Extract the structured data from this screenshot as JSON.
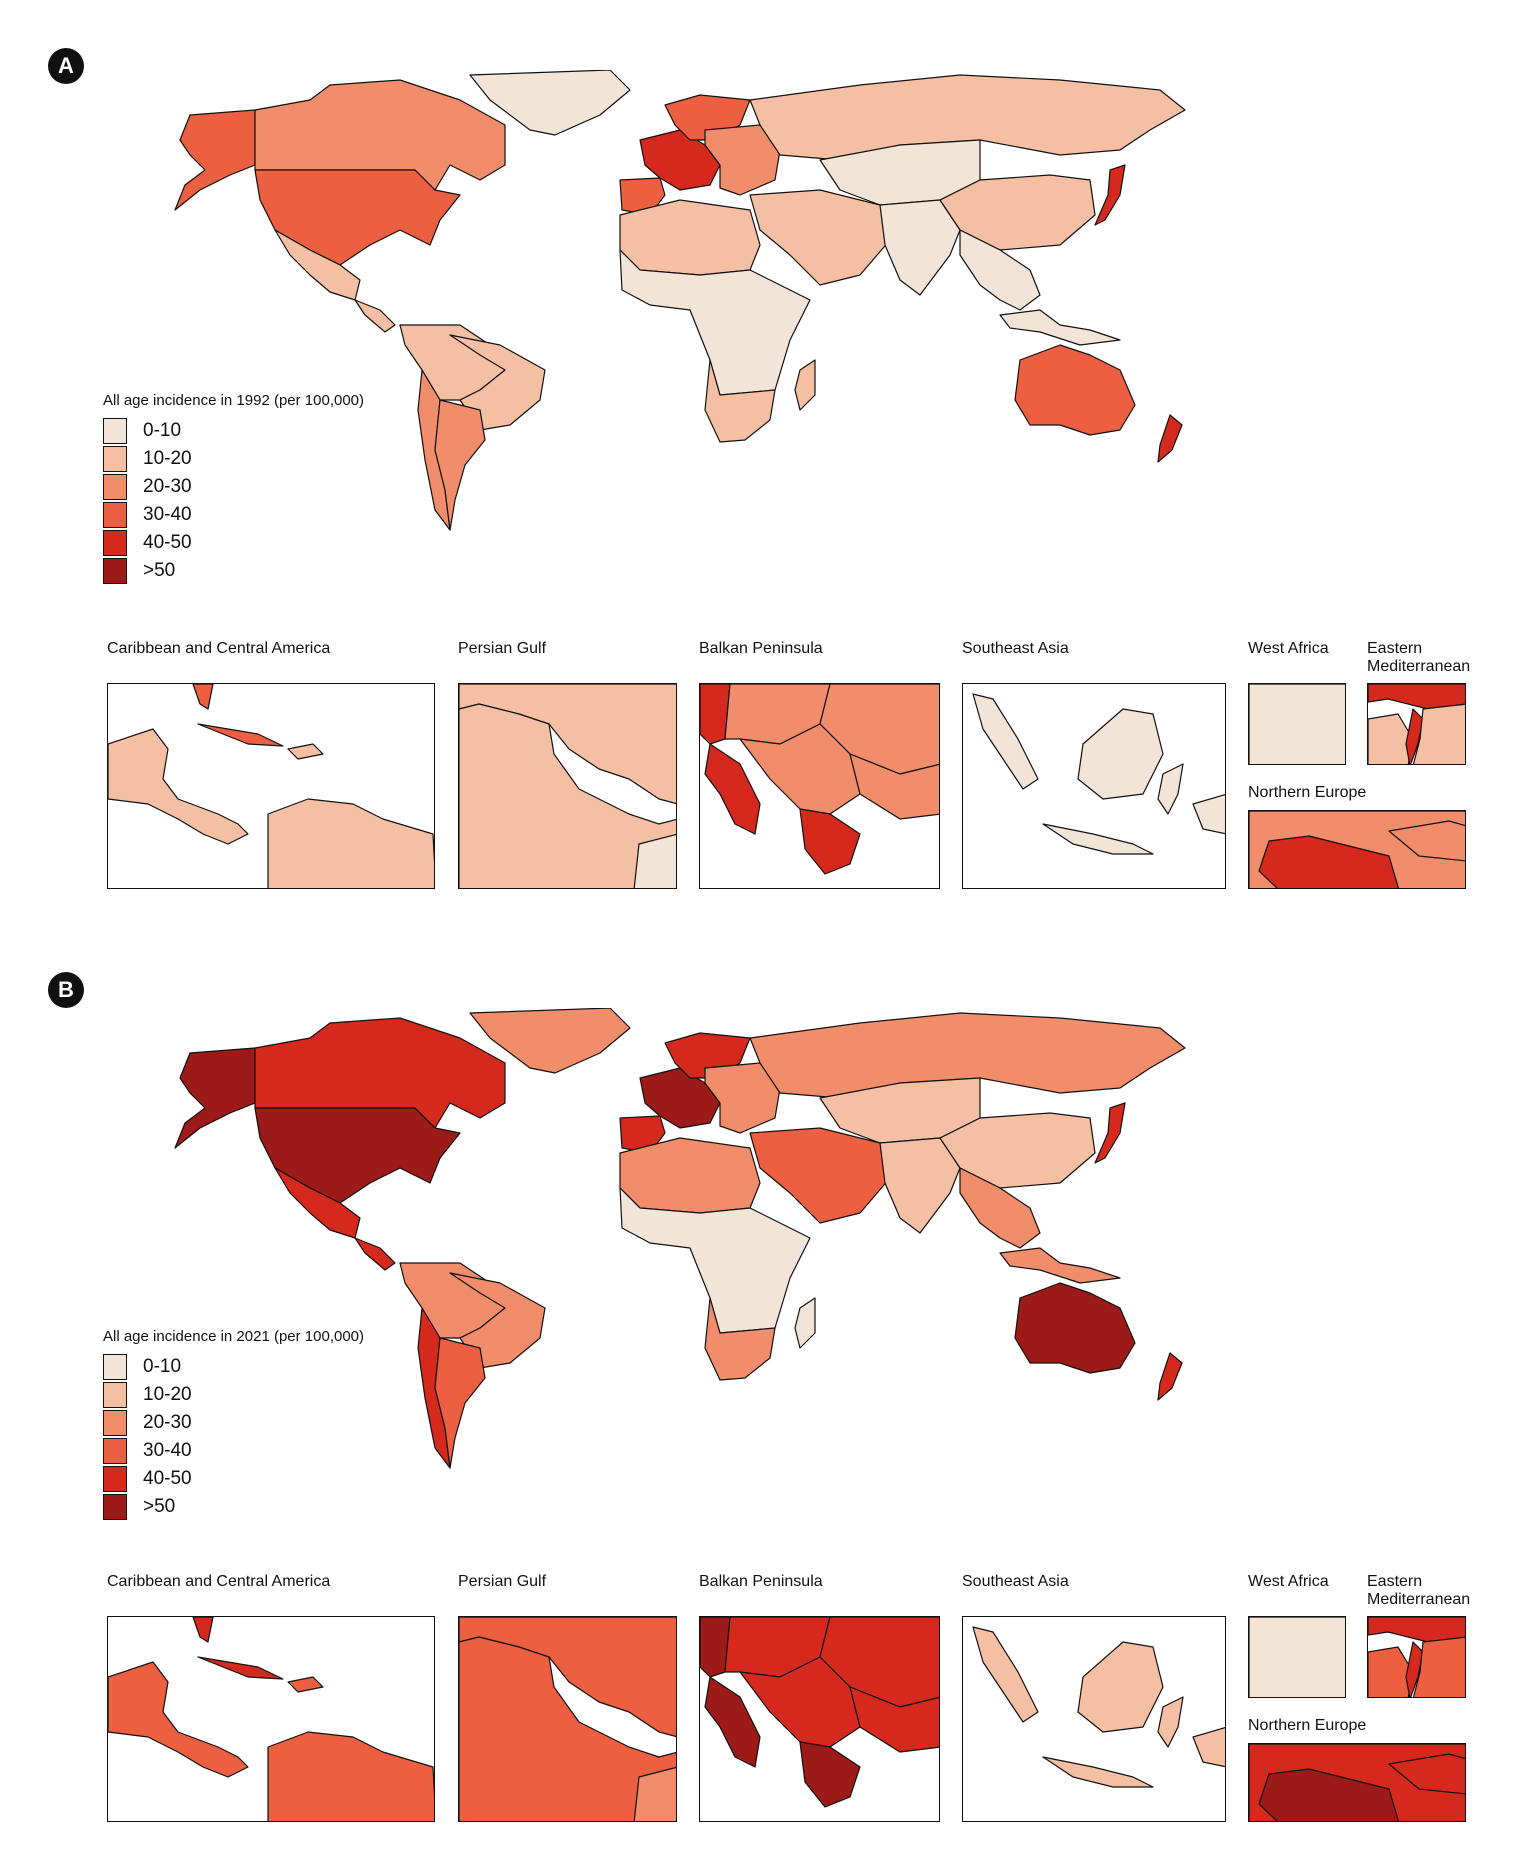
{
  "colors": {
    "bin_0_10": "#f3e4d8",
    "bin_10_20": "#f4bfa3",
    "bin_20_30": "#f28d6b",
    "bin_30_40": "#ec5f40",
    "bin_40_50": "#d5291e",
    "bin_gt_50": "#9c1a17"
  },
  "panels": [
    {
      "letter": "A",
      "legend_title": "All age incidence in 1992 (per 100,000)",
      "legend": [
        {
          "label": "0-10",
          "color": "#f3e4d8"
        },
        {
          "label": "10-20",
          "color": "#f4bfa3"
        },
        {
          "label": "20-30",
          "color": "#f28d6b"
        },
        {
          "label": "30-40",
          "color": "#ec5f40"
        },
        {
          "label": "40-50",
          "color": "#d5291e"
        },
        {
          "label": ">50",
          "color": "#9c1a17"
        }
      ],
      "regions": {
        "greenland": "#f3e4d8",
        "canada": "#f28d6b",
        "alaska": "#ec5f40",
        "usa": "#ec5f40",
        "mexico": "#f4bfa3",
        "central_america": "#f4bfa3",
        "south_america": "#f4bfa3",
        "brazil": "#f4bfa3",
        "argentina": "#f28d6b",
        "chile": "#f28d6b",
        "western_europe": "#d5291e",
        "iberia": "#ec5f40",
        "scandinavia": "#ec5f40",
        "eastern_europe": "#f28d6b",
        "russia": "#f4bfa3",
        "central_asia": "#f3e4d8",
        "middle_east": "#f4bfa3",
        "north_africa": "#f4bfa3",
        "sub_saharan": "#f3e4d8",
        "south_africa": "#f4bfa3",
        "india": "#f3e4d8",
        "china": "#f4bfa3",
        "japan": "#d5291e",
        "southeast_asia": "#f3e4d8",
        "australia": "#ec5f40",
        "new_zealand": "#d5291e",
        "madagascar": "#f4bfa3"
      },
      "insets": [
        {
          "title": "Caribbean and Central America",
          "land": "#f4bfa3",
          "accent": "#ec5f40"
        },
        {
          "title": "Persian Gulf",
          "land": "#f4bfa3",
          "accent": "#f3e4d8"
        },
        {
          "title": "Balkan Peninsula",
          "land": "#f28d6b",
          "accent": "#d5291e"
        },
        {
          "title": "Southeast Asia",
          "land": "#f3e4d8",
          "accent": "#f3e4d8"
        },
        {
          "title": "West Africa",
          "land": "#f3e4d8",
          "accent": "#f3e4d8"
        },
        {
          "title": "Eastern Mediterranean",
          "land": "#f4bfa3",
          "accent": "#d5291e"
        },
        {
          "title": "Northern Europe",
          "land": "#f28d6b",
          "accent": "#d5291e"
        }
      ]
    },
    {
      "letter": "B",
      "legend_title": "All age incidence in 2021 (per 100,000)",
      "legend": [
        {
          "label": "0-10",
          "color": "#f3e4d8"
        },
        {
          "label": "10-20",
          "color": "#f4bfa3"
        },
        {
          "label": "20-30",
          "color": "#f28d6b"
        },
        {
          "label": "30-40",
          "color": "#ec5f40"
        },
        {
          "label": "40-50",
          "color": "#d5291e"
        },
        {
          "label": ">50",
          "color": "#9c1a17"
        }
      ],
      "regions": {
        "greenland": "#f28d6b",
        "canada": "#d5291e",
        "alaska": "#9c1a17",
        "usa": "#9c1a17",
        "mexico": "#d5291e",
        "central_america": "#d5291e",
        "south_america": "#f28d6b",
        "brazil": "#f28d6b",
        "argentina": "#ec5f40",
        "chile": "#d5291e",
        "western_europe": "#9c1a17",
        "iberia": "#d5291e",
        "scandinavia": "#d5291e",
        "eastern_europe": "#f28d6b",
        "russia": "#f28d6b",
        "central_asia": "#f4bfa3",
        "middle_east": "#ec5f40",
        "north_africa": "#f28d6b",
        "sub_saharan": "#f3e4d8",
        "south_africa": "#f28d6b",
        "india": "#f4bfa3",
        "china": "#f4bfa3",
        "japan": "#d5291e",
        "southeast_asia": "#f28d6b",
        "australia": "#9c1a17",
        "new_zealand": "#d5291e",
        "madagascar": "#f3e4d8"
      },
      "insets": [
        {
          "title": "Caribbean and Central America",
          "land": "#ec5f40",
          "accent": "#d5291e"
        },
        {
          "title": "Persian Gulf",
          "land": "#ec5f40",
          "accent": "#f28d6b"
        },
        {
          "title": "Balkan Peninsula",
          "land": "#d5291e",
          "accent": "#9c1a17"
        },
        {
          "title": "Southeast Asia",
          "land": "#f4bfa3",
          "accent": "#d5291e"
        },
        {
          "title": "West Africa",
          "land": "#f3e4d8",
          "accent": "#f3e4d8"
        },
        {
          "title": "Eastern Mediterranean",
          "land": "#ec5f40",
          "accent": "#d5291e"
        },
        {
          "title": "Northern Europe",
          "land": "#d5291e",
          "accent": "#9c1a17"
        }
      ]
    }
  ]
}
